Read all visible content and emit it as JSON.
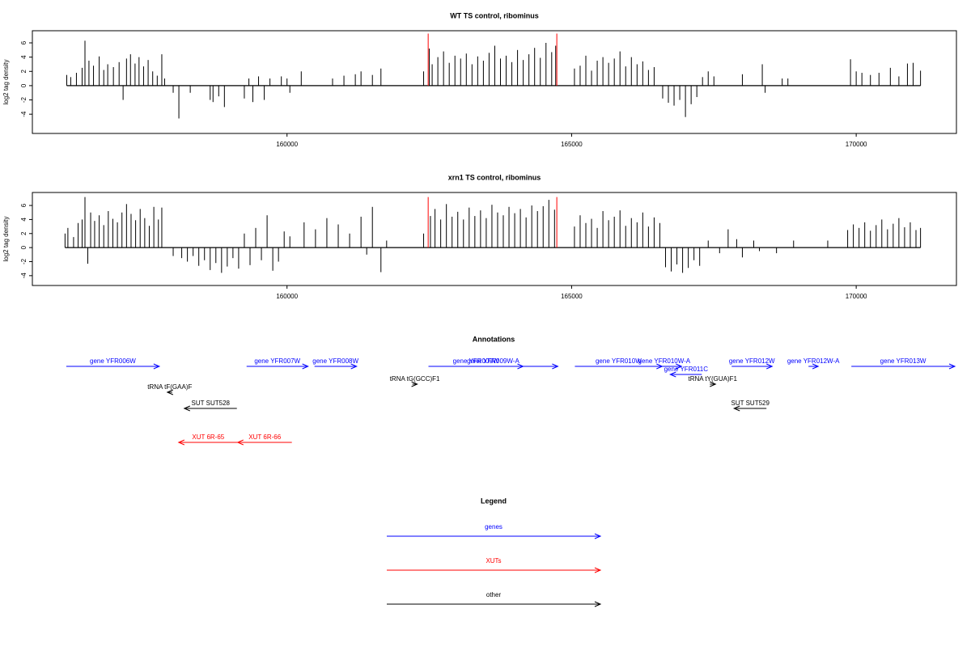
{
  "chart_data": [
    {
      "type": "bar",
      "title": "WT TS control, ribominus",
      "ylabel": "log2 tag density",
      "xlim": [
        155526,
        171761
      ],
      "ylim": [
        -6.7,
        7.7
      ],
      "xticks": [
        160000,
        165000,
        170000
      ],
      "yticks": [
        -4,
        -2,
        0,
        2,
        4,
        6
      ],
      "series": [
        {
          "color": "#000000",
          "x": [
            156130,
            156200,
            156300,
            156400,
            156450,
            156520,
            156600,
            156700,
            156780,
            156850,
            156950,
            157050,
            157120,
            157180,
            157250,
            157330,
            157400,
            157480,
            157560,
            157640,
            157720,
            157800,
            157850,
            158000,
            158100,
            158300,
            158650,
            158700,
            158800,
            158900,
            159250,
            159330,
            159400,
            159500,
            159600,
            159700,
            159900,
            160000,
            160050,
            160250,
            160800,
            161000,
            161200,
            161300,
            161500,
            161650,
            162400,
            162500,
            162550,
            162650,
            162750,
            162850,
            162950,
            163050,
            163150,
            163250,
            163350,
            163450,
            163550,
            163650,
            163750,
            163850,
            163950,
            164050,
            164150,
            164250,
            164350,
            164450,
            164550,
            164650,
            164720,
            165050,
            165150,
            165250,
            165350,
            165450,
            165550,
            165650,
            165750,
            165850,
            165950,
            166050,
            166150,
            166250,
            166350,
            166450,
            166600,
            166700,
            166800,
            166900,
            167000,
            167100,
            167200,
            167300,
            167400,
            167500,
            168000,
            168350,
            168400,
            168700,
            168800,
            169900,
            170000,
            170100,
            170250,
            170400,
            170600,
            170750,
            170900,
            171000,
            171130
          ],
          "values": [
            1.5,
            1.2,
            1.8,
            2.5,
            6.3,
            3.5,
            2.8,
            4.1,
            2.2,
            3.0,
            2.6,
            3.3,
            -2.0,
            3.8,
            4.4,
            3.1,
            4.0,
            2.7,
            3.6,
            2.0,
            1.4,
            4.4,
            1.0,
            -1.0,
            -4.6,
            -1.0,
            -2.0,
            -2.3,
            -1.5,
            -3.0,
            -1.8,
            1.0,
            -2.3,
            1.3,
            -2.0,
            1.0,
            1.3,
            1.0,
            -1.0,
            2.0,
            1.0,
            1.4,
            1.6,
            2.0,
            1.5,
            2.4,
            2.0,
            5.2,
            3.0,
            4.0,
            4.8,
            3.2,
            4.2,
            3.8,
            4.5,
            3.0,
            4.1,
            3.5,
            4.6,
            5.6,
            3.8,
            4.2,
            3.3,
            5.0,
            3.6,
            4.4,
            5.3,
            3.9,
            6.0,
            4.7,
            5.6,
            2.4,
            2.8,
            4.2,
            2.1,
            3.5,
            4.0,
            3.2,
            3.8,
            4.8,
            2.7,
            4.0,
            3.0,
            3.4,
            2.2,
            2.6,
            -1.8,
            -2.4,
            -2.8,
            -2.0,
            -4.4,
            -2.6,
            -1.6,
            1.2,
            2.0,
            1.3,
            1.6,
            3.0,
            -1.0,
            1.0,
            1.0,
            3.7,
            2.0,
            1.8,
            1.5,
            1.8,
            2.5,
            1.3,
            3.1,
            3.2,
            2.1
          ]
        },
        {
          "color": "#ff0000",
          "x": [
            162480,
            164740
          ],
          "values": [
            7.3,
            7.3
          ]
        }
      ]
    },
    {
      "type": "bar",
      "title": "xrn1 TS control, ribominus",
      "ylabel": "log2 tag density",
      "xlim": [
        155526,
        171761
      ],
      "ylim": [
        -5.4,
        7.85
      ],
      "xticks": [
        160000,
        165000,
        170000
      ],
      "yticks": [
        -4,
        -2,
        0,
        2,
        4,
        6
      ],
      "series": [
        {
          "color": "#000000",
          "x": [
            156100,
            156150,
            156250,
            156330,
            156400,
            156450,
            156500,
            156550,
            156620,
            156700,
            156780,
            156860,
            156940,
            157020,
            157100,
            157180,
            157260,
            157340,
            157420,
            157500,
            157580,
            157660,
            157740,
            157800,
            158000,
            158150,
            158250,
            158350,
            158450,
            158550,
            158650,
            158750,
            158850,
            158950,
            159050,
            159150,
            159250,
            159350,
            159450,
            159550,
            159650,
            159750,
            159850,
            159950,
            160050,
            160300,
            160500,
            160700,
            160900,
            161100,
            161300,
            161400,
            161500,
            161650,
            161750,
            162400,
            162520,
            162600,
            162700,
            162800,
            162900,
            163000,
            163100,
            163200,
            163300,
            163400,
            163500,
            163600,
            163700,
            163800,
            163900,
            164000,
            164100,
            164200,
            164300,
            164400,
            164500,
            164600,
            164700,
            165050,
            165150,
            165250,
            165350,
            165450,
            165550,
            165650,
            165750,
            165850,
            165950,
            166050,
            166150,
            166250,
            166350,
            166450,
            166550,
            166650,
            166750,
            166850,
            166950,
            167050,
            167150,
            167250,
            167400,
            167600,
            167750,
            167900,
            168000,
            168200,
            168300,
            168600,
            168900,
            169500,
            169850,
            169950,
            170050,
            170150,
            170250,
            170350,
            170450,
            170550,
            170650,
            170750,
            170850,
            170950,
            171050,
            171130
          ],
          "values": [
            2.0,
            2.8,
            1.5,
            3.5,
            4.0,
            7.2,
            -2.3,
            5.0,
            3.8,
            4.6,
            3.2,
            5.2,
            4.1,
            3.6,
            5.0,
            6.2,
            4.8,
            3.9,
            5.5,
            4.2,
            3.1,
            5.8,
            4.0,
            5.7,
            -1.2,
            -1.5,
            -2.0,
            -1.2,
            -2.6,
            -1.8,
            -3.2,
            -2.2,
            -3.6,
            -2.7,
            -1.5,
            -3.0,
            2.0,
            -2.5,
            2.8,
            -1.8,
            4.6,
            -3.3,
            -2.0,
            2.3,
            1.6,
            3.6,
            2.6,
            4.2,
            3.3,
            2.0,
            4.4,
            -1.0,
            5.8,
            -3.5,
            1.0,
            2.0,
            4.5,
            5.5,
            4.0,
            6.2,
            4.4,
            5.1,
            4.0,
            5.7,
            4.5,
            5.3,
            4.2,
            6.1,
            5.0,
            4.6,
            5.8,
            4.9,
            5.5,
            4.3,
            6.0,
            5.2,
            5.9,
            6.8,
            5.4,
            3.0,
            4.6,
            3.5,
            4.1,
            2.8,
            5.2,
            3.9,
            4.4,
            5.3,
            3.1,
            4.2,
            3.6,
            5.0,
            3.0,
            4.3,
            3.5,
            -2.8,
            -3.4,
            -2.4,
            -3.6,
            -2.9,
            -1.8,
            -2.6,
            1.0,
            -0.8,
            2.6,
            1.2,
            -1.4,
            1.0,
            -0.5,
            -0.8,
            1.0,
            1.0,
            2.5,
            3.3,
            2.8,
            3.6,
            2.4,
            3.2,
            4.0,
            2.6,
            3.4,
            4.2,
            2.9,
            3.6,
            2.5,
            2.8
          ]
        },
        {
          "color": "#ff0000",
          "x": [
            162480,
            164740
          ],
          "values": [
            7.2,
            7.2
          ]
        }
      ]
    }
  ],
  "annotations": {
    "title": "Annotations",
    "items": [
      {
        "label": "gene YFR006W",
        "start": 156122,
        "end": 157756,
        "strand": "+",
        "color": "#0000ff"
      },
      {
        "label": "gene YFR007W",
        "start": 159290,
        "end": 160369,
        "strand": "+",
        "color": "#0000ff"
      },
      {
        "label": "gene YFR008W",
        "start": 160483,
        "end": 161222,
        "strand": "+",
        "color": "#0000ff"
      },
      {
        "label": "gene YFR009W",
        "start": 162486,
        "end": 164148,
        "strand": "+",
        "color": "#0000ff"
      },
      {
        "label": "gene YFR009W-A",
        "start": 162486,
        "end": 164758,
        "strand": "+",
        "color": "#0000ff"
      },
      {
        "label": "gene YFR010W",
        "start": 165057,
        "end": 166591,
        "strand": "+",
        "color": "#0000ff"
      },
      {
        "label": "gene YFR010W-A",
        "start": 166321,
        "end": 166932,
        "strand": "+",
        "color": "#0000ff"
      },
      {
        "label": "gene YFR011C",
        "start": 166733,
        "end": 167287,
        "strand": "-",
        "color": "#0000ff"
      },
      {
        "label": "gene YFR012W",
        "start": 167812,
        "end": 168523,
        "strand": "+",
        "color": "#0000ff"
      },
      {
        "label": "gene YFR012W-A",
        "start": 169162,
        "end": 169332,
        "strand": "+",
        "color": "#0000ff"
      },
      {
        "label": "gene YFR013W",
        "start": 169915,
        "end": 171747,
        "strand": "+",
        "color": "#0000ff"
      },
      {
        "label": "tRNA tF(GAA)F",
        "start": 157898,
        "end": 157983,
        "strand": "-",
        "color": "#000000"
      },
      {
        "label": "tRNA tG(GCC)F1",
        "start": 162202,
        "end": 162287,
        "strand": "+",
        "color": "#000000"
      },
      {
        "label": "tRNA tY(GUA)F1",
        "start": 167429,
        "end": 167528,
        "strand": "+",
        "color": "#000000"
      },
      {
        "label": "SUT SUT528",
        "start": 158196,
        "end": 159119,
        "strand": "-",
        "color": "#000000"
      },
      {
        "label": "SUT SUT529",
        "start": 167855,
        "end": 168423,
        "strand": "-",
        "color": "#000000"
      },
      {
        "label": "XUT 6R-65",
        "start": 158097,
        "end": 159134,
        "strand": "-",
        "color": "#ff0000"
      },
      {
        "label": "XUT 6R-66",
        "start": 159134,
        "end": 160085,
        "strand": "-",
        "color": "#ff0000"
      }
    ]
  },
  "legend": {
    "title": "Legend",
    "items": [
      {
        "name": "genes",
        "color": "#0000ff"
      },
      {
        "name": "XUTs",
        "color": "#ff0000"
      },
      {
        "name": "other",
        "color": "#000000"
      }
    ]
  }
}
